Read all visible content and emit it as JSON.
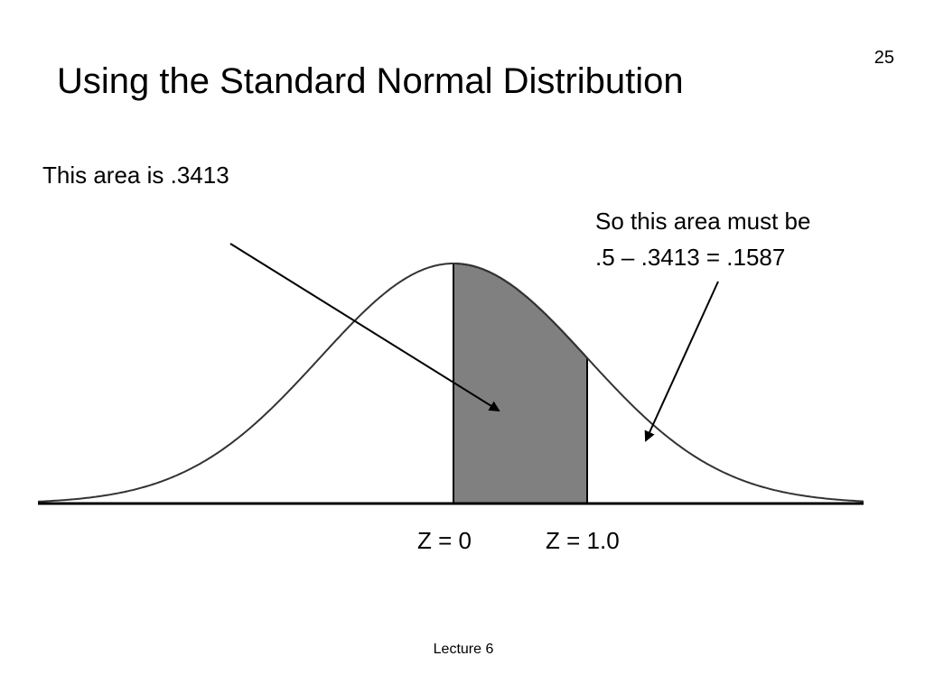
{
  "slide_number": "25",
  "title": "Using the Standard Normal Distribution",
  "annotations": {
    "left": "This area is .3413",
    "right_line1": "So this area must be",
    "right_line2": ".5 – .3413 = .1587"
  },
  "axis_labels": [
    "Z = 0",
    "Z = 1.0"
  ],
  "footer": "Lecture 6"
}
